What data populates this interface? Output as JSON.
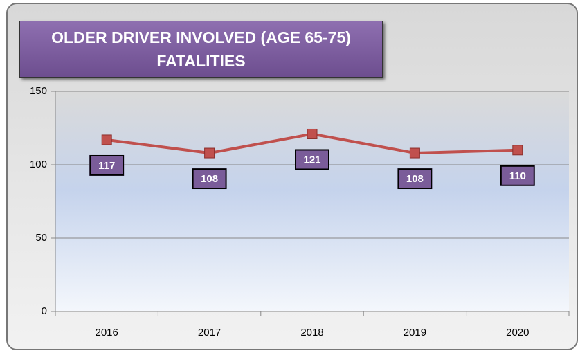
{
  "chart_data": {
    "type": "line",
    "title": "OLDER DRIVER INVOLVED (AGE 65-75) FATALITIES",
    "categories": [
      "2016",
      "2017",
      "2018",
      "2019",
      "2020"
    ],
    "series": [
      {
        "name": "Fatalities",
        "color": "#c0504d",
        "values": [
          117,
          108,
          121,
          108,
          110
        ]
      }
    ],
    "ylim": [
      0,
      150
    ],
    "yticks": [
      0,
      50,
      100,
      150
    ],
    "grid": true
  }
}
